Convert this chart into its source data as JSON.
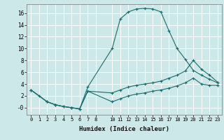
{
  "xlabel": "Humidex (Indice chaleur)",
  "bg_color": "#cce8e8",
  "grid_color": "#ffffff",
  "line_color": "#1a6b6b",
  "xlim": [
    -0.5,
    23.5
  ],
  "ylim": [
    -1.2,
    17.5
  ],
  "yticks": [
    0,
    2,
    4,
    6,
    8,
    10,
    12,
    14,
    16
  ],
  "ytick_labels": [
    "0",
    "2",
    "4",
    "6",
    "8",
    "10",
    "12",
    "14",
    "16"
  ],
  "xticks": [
    0,
    1,
    2,
    3,
    4,
    5,
    6,
    7,
    8,
    10,
    11,
    12,
    13,
    14,
    15,
    16,
    17,
    18,
    19,
    20,
    21,
    22,
    23
  ],
  "xtick_labels": [
    "0",
    "1",
    "2",
    "3",
    "4",
    "5",
    "6",
    "7",
    "8",
    "10",
    "11",
    "12",
    "13",
    "14",
    "15",
    "16",
    "17",
    "18",
    "19",
    "20",
    "21",
    "22",
    "23"
  ],
  "series": [
    {
      "x": [
        0,
        1,
        2,
        3,
        4,
        5,
        6,
        7,
        10,
        11,
        12,
        13,
        14,
        15,
        16,
        17,
        18,
        19,
        20,
        21,
        22,
        23
      ],
      "y": [
        3.0,
        2.0,
        1.0,
        0.5,
        0.2,
        0.0,
        -0.2,
        3.5,
        10.0,
        15.0,
        16.2,
        16.7,
        16.8,
        16.7,
        16.2,
        13.0,
        10.0,
        8.2,
        6.3,
        5.5,
        4.8,
        4.2
      ]
    },
    {
      "x": [
        0,
        2,
        3,
        4,
        5,
        6,
        7,
        10,
        11,
        12,
        13,
        14,
        15,
        16,
        17,
        18,
        19,
        20,
        21,
        22,
        23
      ],
      "y": [
        3.0,
        1.0,
        0.5,
        0.2,
        0.0,
        -0.2,
        2.8,
        2.5,
        3.0,
        3.5,
        3.8,
        4.0,
        4.2,
        4.5,
        5.0,
        5.5,
        6.2,
        8.0,
        6.5,
        5.5,
        4.3
      ]
    },
    {
      "x": [
        0,
        2,
        3,
        4,
        5,
        6,
        7,
        10,
        11,
        12,
        13,
        14,
        15,
        16,
        17,
        18,
        19,
        20,
        21,
        22,
        23
      ],
      "y": [
        3.0,
        1.0,
        0.5,
        0.2,
        0.0,
        -0.2,
        2.8,
        1.0,
        1.5,
        2.0,
        2.3,
        2.5,
        2.8,
        3.0,
        3.3,
        3.7,
        4.2,
        5.0,
        4.0,
        3.8,
        3.8
      ]
    }
  ]
}
